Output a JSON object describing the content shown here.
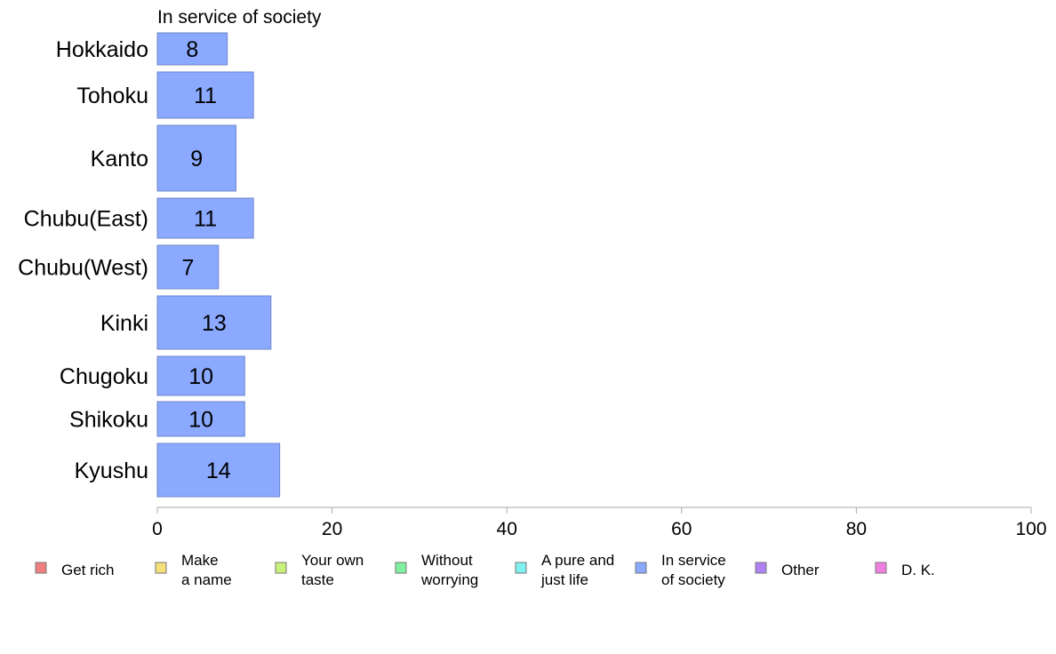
{
  "chart_data": {
    "type": "bar",
    "orientation": "horizontal",
    "title": "In service of society",
    "xlim": [
      0,
      100
    ],
    "xticks": [
      0,
      20,
      40,
      60,
      80,
      100
    ],
    "grid": false,
    "bar_color": "#8aa9ff",
    "bar_border_color": "#6f86cc",
    "categories": [
      "Hokkaido",
      "Tohoku",
      "Kanto",
      "Chubu(East)",
      "Chubu(West)",
      "Kinki",
      "Chugoku",
      "Shikoku",
      "Kyushu"
    ],
    "values": [
      8,
      11,
      9,
      11,
      7,
      13,
      10,
      10,
      14
    ],
    "legend": {
      "placement": "bottom",
      "entries": [
        {
          "lines": [
            "Get rich"
          ],
          "color": "#f08080"
        },
        {
          "lines": [
            "Make",
            "a name"
          ],
          "color": "#f5e07a"
        },
        {
          "lines": [
            "Your own",
            "taste"
          ],
          "color": "#c8f07a"
        },
        {
          "lines": [
            "Without",
            "worrying"
          ],
          "color": "#80f0a0"
        },
        {
          "lines": [
            "A pure and",
            "just life"
          ],
          "color": "#80f0f0"
        },
        {
          "lines": [
            "In service",
            "of society"
          ],
          "color": "#8aa9ff"
        },
        {
          "lines": [
            "Other"
          ],
          "color": "#b080f5"
        },
        {
          "lines": [
            "D. K."
          ],
          "color": "#f080e0"
        }
      ]
    }
  }
}
